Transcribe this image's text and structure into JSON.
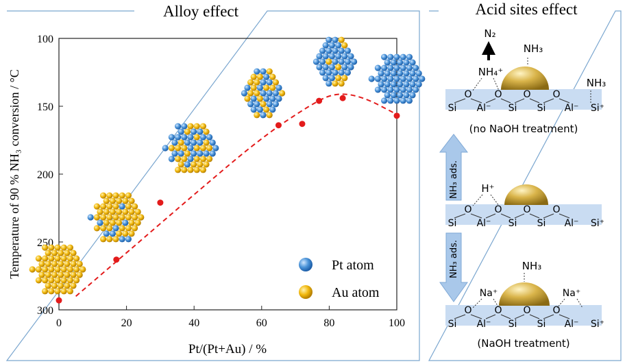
{
  "left_panel": {
    "title": "Alloy effect"
  },
  "right_panel": {
    "title": "Acid sites effect"
  },
  "chart_data": {
    "type": "scatter",
    "title": "",
    "xlabel": "Pt/(Pt+Au) / %",
    "ylabel": "Temperature of 90 % NH₃ conversion / °C",
    "xlim": [
      0,
      100
    ],
    "ylim": [
      300,
      100
    ],
    "y_inverted": true,
    "x_ticks": [
      0,
      20,
      40,
      60,
      80,
      100
    ],
    "y_ticks": [
      100,
      150,
      200,
      250,
      300
    ],
    "points": [
      {
        "x": 0,
        "y": 293
      },
      {
        "x": 17,
        "y": 263
      },
      {
        "x": 30,
        "y": 221
      },
      {
        "x": 65,
        "y": 164
      },
      {
        "x": 72,
        "y": 163
      },
      {
        "x": 77,
        "y": 146
      },
      {
        "x": 84,
        "y": 144
      },
      {
        "x": 100,
        "y": 157
      }
    ],
    "trend_line": [
      {
        "x": 5,
        "y": 290
      },
      {
        "x": 20,
        "y": 258
      },
      {
        "x": 40,
        "y": 215
      },
      {
        "x": 60,
        "y": 173
      },
      {
        "x": 75,
        "y": 148
      },
      {
        "x": 82,
        "y": 140
      },
      {
        "x": 90,
        "y": 143
      },
      {
        "x": 100,
        "y": 156
      }
    ],
    "legend": [
      {
        "label": "Pt atom",
        "color": "#4a93d8"
      },
      {
        "label": "Au atom",
        "color": "#f2b90f"
      }
    ],
    "legend_position": "bottom-right",
    "colors": {
      "points": "#e31b1b",
      "trend": "#e31b1b",
      "pt": "#4a93d8",
      "au": "#f2b90f"
    }
  },
  "acid_panel": {
    "state1": {
      "product": "N₂",
      "nh4": "NH₄⁺",
      "nh3_top": "NH₃",
      "nh3_side": "NH₃",
      "lattice": [
        "Si",
        "Al⁻",
        "Si",
        "Si",
        "Al⁻",
        "Si⁺"
      ],
      "oxygen": "O",
      "caption": "(no NaOH treatment)"
    },
    "arrow_up_label": "NH₃ ads.",
    "state2": {
      "proton": "H⁺",
      "lattice": [
        "Si",
        "Al⁻",
        "Si",
        "Si",
        "Al⁻",
        "Si⁺"
      ],
      "oxygen": "O"
    },
    "arrow_down_label": "NH₃ ads.",
    "state3": {
      "nh3_top": "NH₃",
      "na_left": "Na⁺",
      "na_right": "Na⁺",
      "lattice": [
        "Si",
        "Al⁻",
        "Si",
        "Si",
        "Al⁻",
        "Si⁺"
      ],
      "oxygen": "O",
      "caption": "(NaOH treatment)"
    },
    "colors": {
      "support": "#c9dcf2",
      "arrow": "#a9c8ea",
      "particle": "#c9a23a"
    }
  }
}
